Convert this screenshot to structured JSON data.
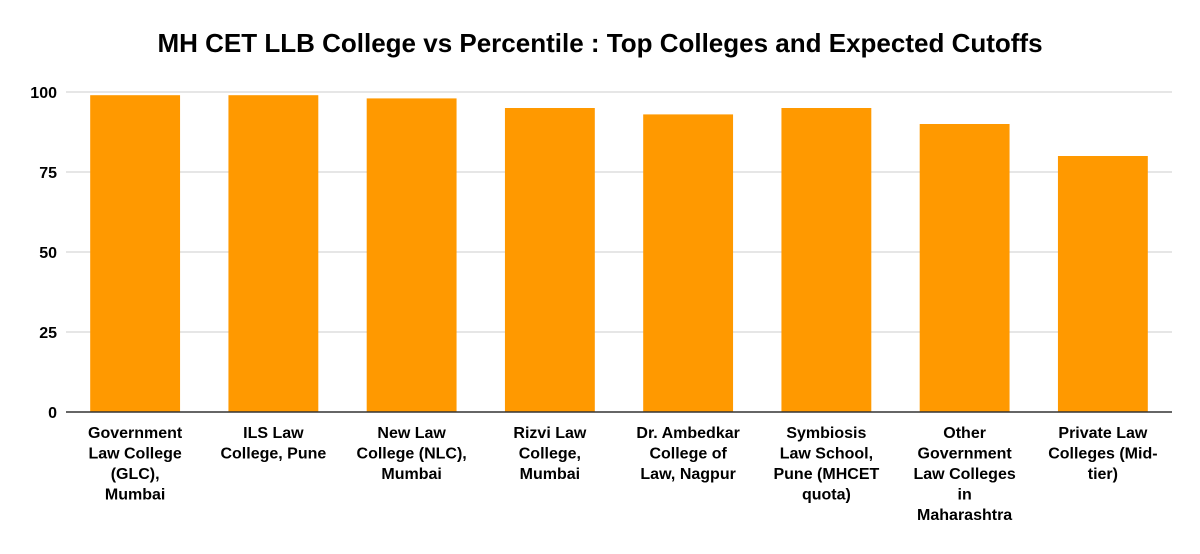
{
  "chart_data": {
    "type": "bar",
    "title": "MH CET LLB College vs Percentile : Top Colleges and Expected Cutoffs",
    "xlabel": "",
    "ylabel": "",
    "ylim": [
      0,
      100
    ],
    "yticks": [
      0,
      25,
      50,
      75,
      100
    ],
    "grid": true,
    "legend": "none",
    "bar_color": "#ff9900",
    "categories": [
      [
        "Government",
        "Law College",
        "(GLC),",
        "Mumbai"
      ],
      [
        "ILS Law",
        "College, Pune"
      ],
      [
        "New Law",
        "College (NLC),",
        "Mumbai"
      ],
      [
        "Rizvi Law",
        "College,",
        "Mumbai"
      ],
      [
        "Dr. Ambedkar",
        "College of",
        "Law, Nagpur"
      ],
      [
        "Symbiosis",
        "Law School,",
        "Pune (MHCET",
        "quota)"
      ],
      [
        "Other",
        "Government",
        "Law Colleges",
        "in",
        "Maharashtra"
      ],
      [
        "Private Law",
        "Colleges (Mid-",
        "tier)"
      ]
    ],
    "values": [
      99,
      99,
      98,
      95,
      93,
      95,
      90,
      80
    ]
  }
}
